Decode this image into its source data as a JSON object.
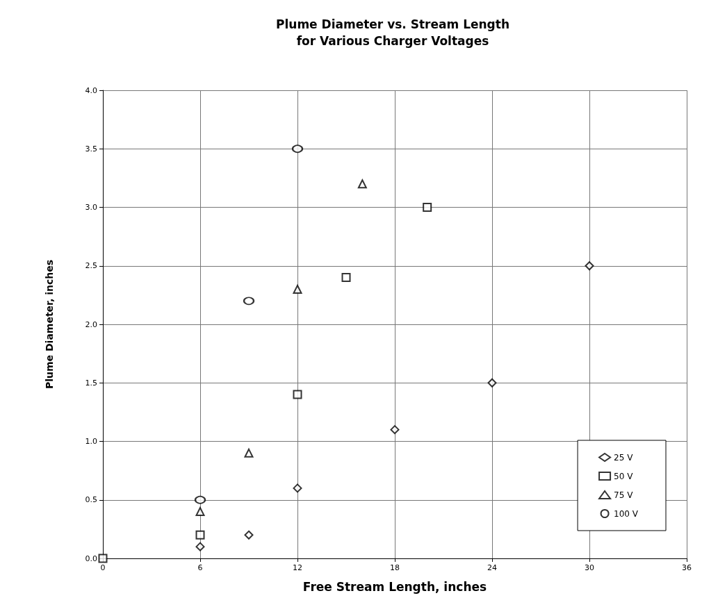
{
  "chart_data": {
    "type": "scatter",
    "title": "Plume Diameter vs. Stream Length\nfor Various Charger Voltages",
    "xlabel": "Free Stream Length, inches",
    "ylabel": "Plume Diameter, inches",
    "xlim": [
      0,
      36
    ],
    "xticks": [
      0,
      6,
      12,
      18,
      24,
      30,
      36
    ],
    "ylim": [
      0,
      4
    ],
    "yticks": [
      {
        "value": 0,
        "label": "0.0"
      },
      {
        "value": 0.5,
        "label": "0.5"
      },
      {
        "value": 1,
        "label": "1.0"
      },
      {
        "value": 1.5,
        "label": "1.5"
      },
      {
        "value": 2,
        "label": "2.0"
      },
      {
        "value": 2.5,
        "label": "2.5"
      },
      {
        "value": 3,
        "label": "3.0"
      },
      {
        "value": 3.5,
        "label": "3.5"
      },
      {
        "value": 4,
        "label": "4.0"
      }
    ],
    "grid": true,
    "legend": "bottom right",
    "series": [
      {
        "name": "25 V",
        "color": "#000000",
        "marker": "diamond",
        "x": [
          6,
          9,
          12,
          18,
          24,
          30
        ],
        "values": [
          0.1,
          0.2,
          0.6,
          1.1,
          1.5,
          2.5
        ]
      },
      {
        "name": "50 V",
        "color": "#000000",
        "marker": "square",
        "x": [
          0,
          6,
          12,
          15,
          20
        ],
        "values": [
          0,
          0.2,
          1.4,
          2.4,
          3.0
        ]
      },
      {
        "name": "75 V",
        "color": "#000000",
        "marker": "triangle",
        "x": [
          6,
          9,
          12,
          16
        ],
        "values": [
          0.4,
          0.9,
          2.3,
          3.2
        ]
      },
      {
        "name": "100 V",
        "color": "#000000",
        "marker": "circle",
        "x": [
          6,
          9,
          12
        ],
        "values": [
          0.5,
          2.2,
          3.5
        ]
      }
    ]
  }
}
